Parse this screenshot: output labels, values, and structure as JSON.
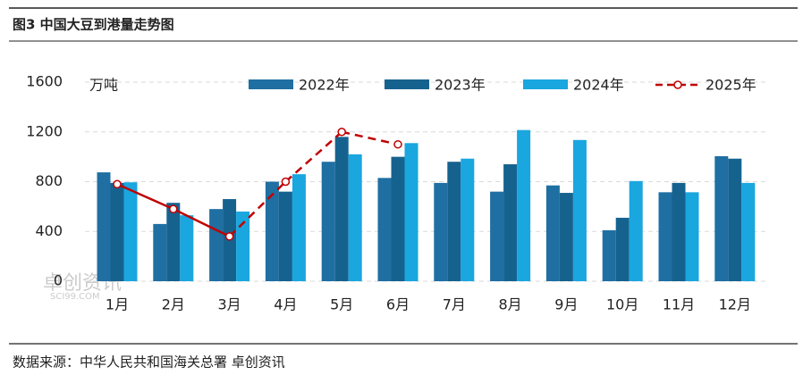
{
  "header": {
    "title": "图3 中国大豆到港量走势图"
  },
  "chart_data": {
    "type": "bar",
    "unit_label": "万吨",
    "categories": [
      "1月",
      "2月",
      "3月",
      "4月",
      "5月",
      "6月",
      "7月",
      "8月",
      "9月",
      "10月",
      "11月",
      "12月"
    ],
    "series": [
      {
        "name": "2022年",
        "type": "bar",
        "color": "#1f6fa3",
        "values": [
          875,
          460,
          580,
          800,
          960,
          830,
          790,
          720,
          770,
          410,
          715,
          1005
        ]
      },
      {
        "name": "2023年",
        "type": "bar",
        "color": "#16628f",
        "values": [
          790,
          630,
          660,
          720,
          1160,
          1000,
          960,
          940,
          710,
          510,
          790,
          985
        ]
      },
      {
        "name": "2024年",
        "type": "bar",
        "color": "#1aa6df",
        "values": [
          795,
          530,
          560,
          860,
          1020,
          1110,
          985,
          1215,
          1135,
          805,
          715,
          790
        ]
      },
      {
        "name": "2025年",
        "type": "line",
        "color": "#c00000",
        "values": [
          780,
          580,
          360,
          800,
          1200,
          1100,
          null,
          null,
          null,
          null,
          null,
          null
        ]
      }
    ],
    "ylim": [
      0,
      1600
    ],
    "yticks": [
      0,
      400,
      800,
      1200,
      1600
    ],
    "grid": true,
    "watermark": [
      "卓创资讯",
      "SCI99.COM"
    ]
  },
  "footer": {
    "source": "数据来源：中华人民共和国海关总署 卓创资讯"
  }
}
